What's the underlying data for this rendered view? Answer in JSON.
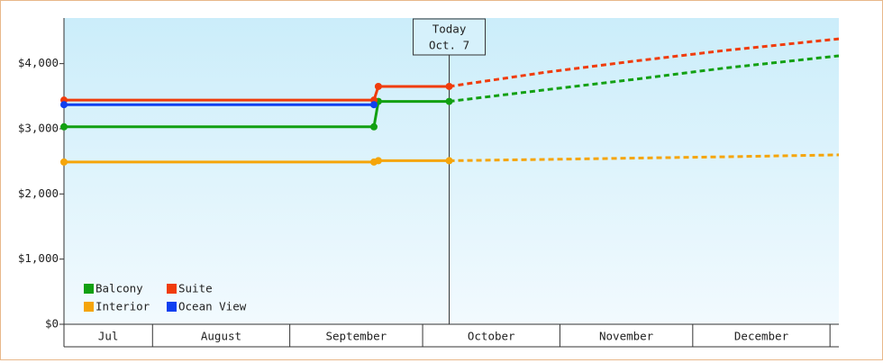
{
  "chart_data": {
    "type": "line",
    "x": [
      11,
      81,
      82,
      98,
      120,
      140,
      160,
      186
    ],
    "xlim": [
      11,
      186
    ],
    "x_bands": [
      {
        "label": "Jul",
        "start": 11,
        "end": 31
      },
      {
        "label": "August",
        "start": 31,
        "end": 62
      },
      {
        "label": "September",
        "start": 62,
        "end": 92
      },
      {
        "label": "October",
        "start": 92,
        "end": 123
      },
      {
        "label": "November",
        "start": 123,
        "end": 153
      },
      {
        "label": "December",
        "start": 153,
        "end": 184
      }
    ],
    "ylim": [
      0,
      4700
    ],
    "yticks": [
      {
        "value": 0,
        "label": "$0"
      },
      {
        "value": 1000,
        "label": "$1,000"
      },
      {
        "value": 2000,
        "label": "$2,000"
      },
      {
        "value": 3000,
        "label": "$3,000"
      },
      {
        "value": 4000,
        "label": "$4,000"
      }
    ],
    "dashed_from": 3,
    "markers_until": 3,
    "today": {
      "x": 98,
      "label": [
        "Today",
        "Oct. 7"
      ]
    },
    "legend": "bottom-left",
    "series": [
      {
        "name": "Balcony",
        "color": "#12a012",
        "values": [
          3030,
          3030,
          3420,
          3420,
          3600,
          3760,
          3930,
          4120
        ]
      },
      {
        "name": "Suite",
        "color": "#f03c0c",
        "values": [
          3440,
          3440,
          3650,
          3650,
          3870,
          4040,
          4200,
          4380
        ]
      },
      {
        "name": "Interior",
        "color": "#f5a50a",
        "values": [
          2490,
          2490,
          2510,
          2510,
          2530,
          2550,
          2570,
          2600
        ]
      },
      {
        "name": "Ocean View",
        "color": "#1040f0",
        "values": [
          3370,
          3370,
          null,
          null,
          null,
          null,
          null,
          null
        ]
      }
    ]
  }
}
